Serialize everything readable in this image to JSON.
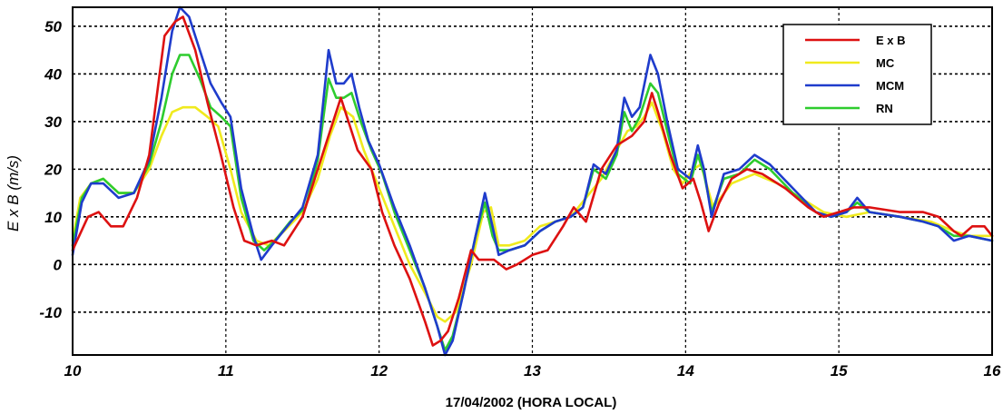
{
  "chart_data": {
    "type": "line",
    "xlabel": "17/04/2002   (HORA LOCAL)",
    "ylabel": "E x B  (m/s)",
    "xlim": [
      10,
      16
    ],
    "ylim": [
      -19,
      54
    ],
    "x_ticks": [
      10,
      11,
      12,
      13,
      14,
      15,
      16
    ],
    "y_ticks": [
      -10,
      0,
      10,
      20,
      30,
      40,
      50
    ],
    "grid": true,
    "legend_position": "top-right",
    "series": [
      {
        "name": "E x B",
        "color": "#dd1111",
        "points": [
          [
            10.0,
            3
          ],
          [
            10.1,
            10
          ],
          [
            10.17,
            11
          ],
          [
            10.25,
            8
          ],
          [
            10.33,
            8
          ],
          [
            10.42,
            14
          ],
          [
            10.5,
            23
          ],
          [
            10.56,
            38
          ],
          [
            10.6,
            48
          ],
          [
            10.67,
            51
          ],
          [
            10.72,
            52
          ],
          [
            10.8,
            45
          ],
          [
            10.88,
            34
          ],
          [
            10.96,
            24
          ],
          [
            11.05,
            12
          ],
          [
            11.12,
            5
          ],
          [
            11.2,
            4
          ],
          [
            11.3,
            5
          ],
          [
            11.38,
            4
          ],
          [
            11.5,
            10
          ],
          [
            11.6,
            20
          ],
          [
            11.68,
            28
          ],
          [
            11.75,
            35
          ],
          [
            11.8,
            30
          ],
          [
            11.86,
            24
          ],
          [
            11.95,
            20
          ],
          [
            12.02,
            11
          ],
          [
            12.1,
            4
          ],
          [
            12.2,
            -3
          ],
          [
            12.3,
            -12
          ],
          [
            12.35,
            -17
          ],
          [
            12.4,
            -16
          ],
          [
            12.45,
            -14
          ],
          [
            12.52,
            -7
          ],
          [
            12.6,
            3
          ],
          [
            12.65,
            1
          ],
          [
            12.75,
            1
          ],
          [
            12.83,
            -1
          ],
          [
            12.9,
            0
          ],
          [
            13.0,
            2
          ],
          [
            13.1,
            3
          ],
          [
            13.2,
            8
          ],
          [
            13.27,
            12
          ],
          [
            13.35,
            9
          ],
          [
            13.45,
            20
          ],
          [
            13.55,
            25
          ],
          [
            13.65,
            27
          ],
          [
            13.73,
            30
          ],
          [
            13.78,
            36
          ],
          [
            13.82,
            32
          ],
          [
            13.9,
            23
          ],
          [
            13.98,
            16
          ],
          [
            14.05,
            18
          ],
          [
            14.1,
            13
          ],
          [
            14.15,
            7
          ],
          [
            14.22,
            13
          ],
          [
            14.3,
            18
          ],
          [
            14.4,
            20
          ],
          [
            14.5,
            19
          ],
          [
            14.65,
            16
          ],
          [
            14.8,
            12
          ],
          [
            14.9,
            10
          ],
          [
            15.0,
            11
          ],
          [
            15.1,
            12
          ],
          [
            15.2,
            12
          ],
          [
            15.4,
            11
          ],
          [
            15.55,
            11
          ],
          [
            15.65,
            10
          ],
          [
            15.75,
            7
          ],
          [
            15.8,
            6
          ],
          [
            15.87,
            8
          ],
          [
            15.95,
            8
          ],
          [
            16.0,
            6
          ]
        ]
      },
      {
        "name": "MC",
        "color": "#f0ea1e",
        "points": [
          [
            10.0,
            5
          ],
          [
            10.05,
            14
          ],
          [
            10.12,
            17
          ],
          [
            10.2,
            18
          ],
          [
            10.3,
            15
          ],
          [
            10.4,
            15
          ],
          [
            10.5,
            20
          ],
          [
            10.58,
            27
          ],
          [
            10.65,
            32
          ],
          [
            10.72,
            33
          ],
          [
            10.8,
            33
          ],
          [
            10.88,
            31
          ],
          [
            10.95,
            29
          ],
          [
            11.03,
            20
          ],
          [
            11.1,
            11
          ],
          [
            11.2,
            5
          ],
          [
            11.28,
            4
          ],
          [
            11.38,
            7
          ],
          [
            11.5,
            11
          ],
          [
            11.6,
            18
          ],
          [
            11.68,
            27
          ],
          [
            11.75,
            33
          ],
          [
            11.83,
            31
          ],
          [
            11.9,
            24
          ],
          [
            12.0,
            16
          ],
          [
            12.1,
            8
          ],
          [
            12.2,
            0
          ],
          [
            12.3,
            -6
          ],
          [
            12.38,
            -11
          ],
          [
            12.43,
            -12
          ],
          [
            12.5,
            -10
          ],
          [
            12.6,
            0
          ],
          [
            12.68,
            11
          ],
          [
            12.73,
            12
          ],
          [
            12.78,
            4
          ],
          [
            12.85,
            4
          ],
          [
            12.95,
            5
          ],
          [
            13.05,
            8
          ],
          [
            13.15,
            9
          ],
          [
            13.25,
            10
          ],
          [
            13.35,
            14
          ],
          [
            13.45,
            18
          ],
          [
            13.55,
            24
          ],
          [
            13.62,
            28
          ],
          [
            13.68,
            29
          ],
          [
            13.73,
            31
          ],
          [
            13.78,
            34
          ],
          [
            13.85,
            28
          ],
          [
            13.92,
            20
          ],
          [
            13.98,
            17
          ],
          [
            14.05,
            20
          ],
          [
            14.1,
            21
          ],
          [
            14.18,
            12
          ],
          [
            14.3,
            17
          ],
          [
            14.45,
            19
          ],
          [
            14.6,
            17
          ],
          [
            14.75,
            14
          ],
          [
            14.9,
            11
          ],
          [
            15.05,
            10
          ],
          [
            15.2,
            11
          ],
          [
            15.4,
            10
          ],
          [
            15.6,
            9
          ],
          [
            15.75,
            7
          ],
          [
            15.85,
            6
          ],
          [
            16.0,
            6
          ]
        ]
      },
      {
        "name": "MCM",
        "color": "#1f3ccc",
        "points": [
          [
            10.0,
            2
          ],
          [
            10.06,
            13
          ],
          [
            10.12,
            17
          ],
          [
            10.2,
            17
          ],
          [
            10.3,
            14
          ],
          [
            10.4,
            15
          ],
          [
            10.5,
            22
          ],
          [
            10.58,
            35
          ],
          [
            10.65,
            49
          ],
          [
            10.7,
            54
          ],
          [
            10.76,
            52
          ],
          [
            10.83,
            45
          ],
          [
            10.9,
            38
          ],
          [
            10.97,
            34
          ],
          [
            11.03,
            31
          ],
          [
            11.1,
            16
          ],
          [
            11.18,
            6
          ],
          [
            11.23,
            1
          ],
          [
            11.3,
            4
          ],
          [
            11.4,
            8
          ],
          [
            11.5,
            12
          ],
          [
            11.6,
            23
          ],
          [
            11.67,
            45
          ],
          [
            11.72,
            38
          ],
          [
            11.77,
            38
          ],
          [
            11.82,
            40
          ],
          [
            11.87,
            33
          ],
          [
            11.93,
            26
          ],
          [
            12.0,
            21
          ],
          [
            12.1,
            12
          ],
          [
            12.2,
            4
          ],
          [
            12.3,
            -5
          ],
          [
            12.38,
            -13
          ],
          [
            12.43,
            -19
          ],
          [
            12.48,
            -16
          ],
          [
            12.55,
            -6
          ],
          [
            12.63,
            6
          ],
          [
            12.69,
            15
          ],
          [
            12.74,
            8
          ],
          [
            12.78,
            2
          ],
          [
            12.85,
            3
          ],
          [
            12.95,
            4
          ],
          [
            13.05,
            7
          ],
          [
            13.15,
            9
          ],
          [
            13.25,
            10
          ],
          [
            13.33,
            12
          ],
          [
            13.4,
            21
          ],
          [
            13.48,
            19
          ],
          [
            13.55,
            24
          ],
          [
            13.6,
            35
          ],
          [
            13.65,
            31
          ],
          [
            13.7,
            33
          ],
          [
            13.77,
            44
          ],
          [
            13.82,
            40
          ],
          [
            13.88,
            30
          ],
          [
            13.95,
            20
          ],
          [
            14.03,
            18
          ],
          [
            14.08,
            25
          ],
          [
            14.12,
            20
          ],
          [
            14.17,
            10
          ],
          [
            14.25,
            19
          ],
          [
            14.35,
            20
          ],
          [
            14.45,
            23
          ],
          [
            14.55,
            21
          ],
          [
            14.7,
            16
          ],
          [
            14.85,
            11
          ],
          [
            14.95,
            10
          ],
          [
            15.05,
            11
          ],
          [
            15.12,
            14
          ],
          [
            15.2,
            11
          ],
          [
            15.4,
            10
          ],
          [
            15.55,
            9
          ],
          [
            15.65,
            8
          ],
          [
            15.75,
            5
          ],
          [
            15.85,
            6
          ],
          [
            16.0,
            5
          ]
        ]
      },
      {
        "name": "RN",
        "color": "#2ecc2e",
        "points": [
          [
            10.0,
            4
          ],
          [
            10.06,
            14
          ],
          [
            10.12,
            17
          ],
          [
            10.2,
            18
          ],
          [
            10.3,
            15
          ],
          [
            10.4,
            15
          ],
          [
            10.5,
            21
          ],
          [
            10.58,
            30
          ],
          [
            10.65,
            40
          ],
          [
            10.7,
            44
          ],
          [
            10.76,
            44
          ],
          [
            10.83,
            39
          ],
          [
            10.9,
            33
          ],
          [
            10.97,
            31
          ],
          [
            11.03,
            29
          ],
          [
            11.1,
            14
          ],
          [
            11.18,
            5
          ],
          [
            11.25,
            3
          ],
          [
            11.32,
            5
          ],
          [
            11.42,
            9
          ],
          [
            11.52,
            12
          ],
          [
            11.6,
            22
          ],
          [
            11.67,
            39
          ],
          [
            11.72,
            35
          ],
          [
            11.77,
            35
          ],
          [
            11.82,
            36
          ],
          [
            11.88,
            30
          ],
          [
            11.95,
            24
          ],
          [
            12.02,
            19
          ],
          [
            12.1,
            11
          ],
          [
            12.2,
            3
          ],
          [
            12.3,
            -5
          ],
          [
            12.38,
            -13
          ],
          [
            12.43,
            -18
          ],
          [
            12.48,
            -15
          ],
          [
            12.55,
            -6
          ],
          [
            12.63,
            6
          ],
          [
            12.69,
            13
          ],
          [
            12.74,
            6
          ],
          [
            12.78,
            3
          ],
          [
            12.85,
            3
          ],
          [
            12.95,
            4
          ],
          [
            13.05,
            7
          ],
          [
            13.15,
            9
          ],
          [
            13.25,
            10
          ],
          [
            13.33,
            12
          ],
          [
            13.4,
            20
          ],
          [
            13.48,
            18
          ],
          [
            13.55,
            23
          ],
          [
            13.6,
            32
          ],
          [
            13.65,
            28
          ],
          [
            13.7,
            31
          ],
          [
            13.77,
            38
          ],
          [
            13.82,
            36
          ],
          [
            13.88,
            28
          ],
          [
            13.95,
            19
          ],
          [
            14.03,
            17
          ],
          [
            14.08,
            23
          ],
          [
            14.12,
            19
          ],
          [
            14.17,
            11
          ],
          [
            14.25,
            18
          ],
          [
            14.35,
            19
          ],
          [
            14.45,
            22
          ],
          [
            14.55,
            20
          ],
          [
            14.7,
            15
          ],
          [
            14.85,
            11
          ],
          [
            14.95,
            10
          ],
          [
            15.05,
            11
          ],
          [
            15.12,
            13
          ],
          [
            15.2,
            11
          ],
          [
            15.4,
            10
          ],
          [
            15.55,
            9
          ],
          [
            15.65,
            8
          ],
          [
            15.75,
            6
          ],
          [
            15.85,
            6
          ],
          [
            16.0,
            5
          ]
        ]
      }
    ]
  }
}
